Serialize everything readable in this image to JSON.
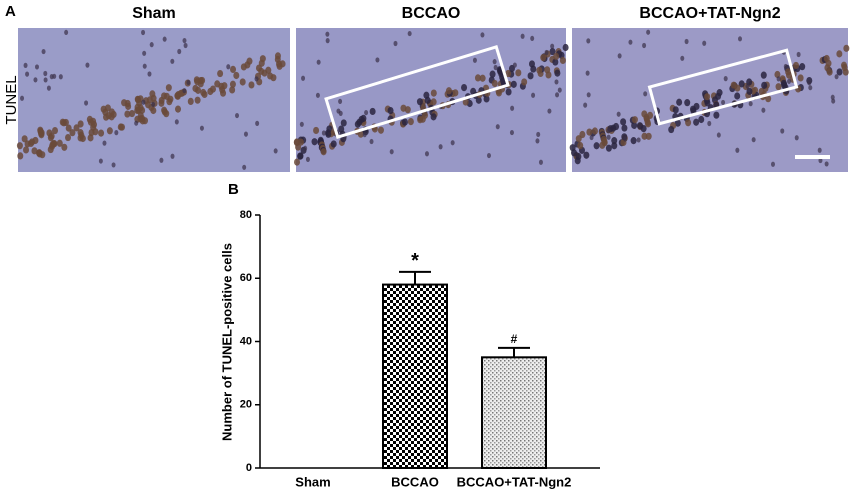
{
  "panel_a": {
    "label": "A",
    "row_label": "TUNEL",
    "titles": [
      "Sham",
      "BCCAO",
      "BCCAO+TAT-Ngn2"
    ]
  },
  "chart_data": {
    "type": "bar",
    "panel_label": "B",
    "y_label": "Number of TUNEL-positive cells",
    "categories": [
      "Sham",
      "BCCAO",
      "BCCAO+TAT-Ngn2"
    ],
    "values": [
      0,
      58,
      35
    ],
    "errors": [
      0,
      4,
      3
    ],
    "patterns": [
      "solid",
      "checker",
      "dots"
    ],
    "annotations": [
      {
        "x": "BCCAO",
        "text": "*"
      },
      {
        "x": "BCCAO+TAT-Ngn2",
        "text": "#"
      }
    ],
    "ylim": [
      0,
      80
    ],
    "yticks": [
      0,
      20,
      40,
      60,
      80
    ]
  }
}
